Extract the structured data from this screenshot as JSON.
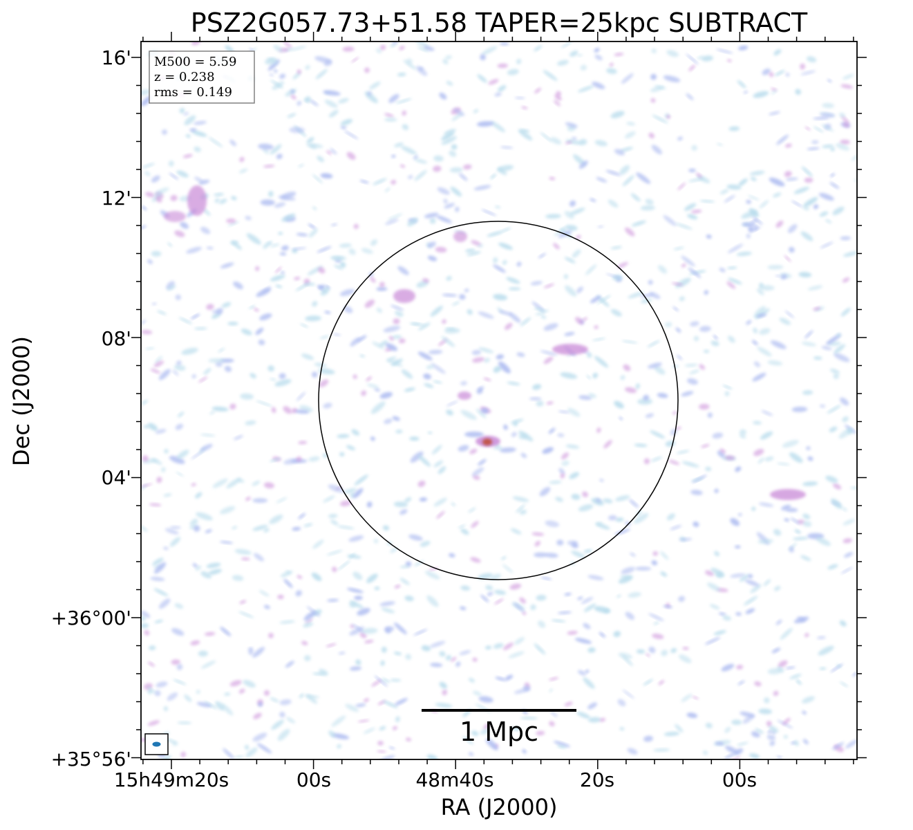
{
  "figure": {
    "title": "PSZ2G057.73+51.58 TAPER=25kpc SUBTRACT",
    "xlabel": "RA (J2000)",
    "ylabel": "Dec (J2000)"
  },
  "ra_ticks": [
    "15h49m20s",
    "00s",
    "48m40s",
    "20s",
    "00s"
  ],
  "dec_ticks": [
    "16'",
    "12'",
    "08'",
    "+36°00'",
    "04'",
    "+35°56'"
  ],
  "info_box": {
    "mass": "M500 = 5.59",
    "redshift": "z = 0.238",
    "rms": "rms = 0.149"
  },
  "scalebar": {
    "label": "1 Mpc"
  },
  "colors": {
    "noise_light": "#b8dcec",
    "noise_mid": "#a9b8f0",
    "noise_strong": "#c98ad8",
    "source_peak": "#c0503a",
    "frame": "#000000",
    "beam": "#1f77b4"
  }
}
